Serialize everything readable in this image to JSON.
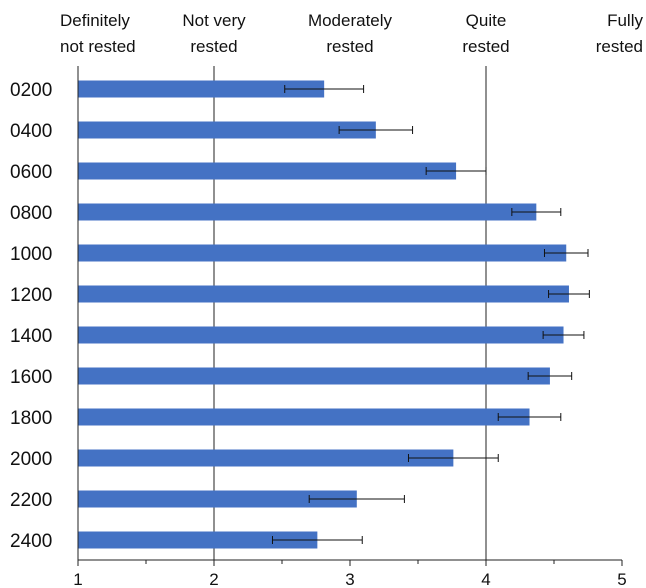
{
  "chart_data": {
    "type": "bar",
    "orientation": "horizontal",
    "categories": [
      "0200",
      "0400",
      "0600",
      "0800",
      "1000",
      "1200",
      "1400",
      "1600",
      "1800",
      "2000",
      "2200",
      "2400"
    ],
    "values": [
      2.81,
      3.19,
      3.78,
      4.37,
      4.59,
      4.61,
      4.57,
      4.47,
      4.32,
      3.76,
      3.05,
      2.76
    ],
    "errors": [
      0.29,
      0.27,
      0.22,
      0.18,
      0.16,
      0.15,
      0.15,
      0.16,
      0.23,
      0.33,
      0.35,
      0.33
    ],
    "xlim": [
      1,
      5
    ],
    "x_ticks": [
      1,
      2,
      3,
      4,
      5
    ],
    "x_tick_labels": [
      "1",
      "2",
      "3",
      "4",
      "5"
    ],
    "scale_descriptors": [
      {
        "value": 1,
        "lines": [
          "Definitely",
          "not rested"
        ]
      },
      {
        "value": 2,
        "lines": [
          "Not very",
          "rested"
        ]
      },
      {
        "value": 3,
        "lines": [
          "Moderately",
          "rested"
        ]
      },
      {
        "value": 4,
        "lines": [
          "Quite",
          "rested"
        ]
      },
      {
        "value": 5,
        "lines": [
          "Fully",
          "rested"
        ]
      }
    ],
    "gridlines_x": [
      2,
      4
    ],
    "bar_color": "#4472C4",
    "grid": true
  }
}
